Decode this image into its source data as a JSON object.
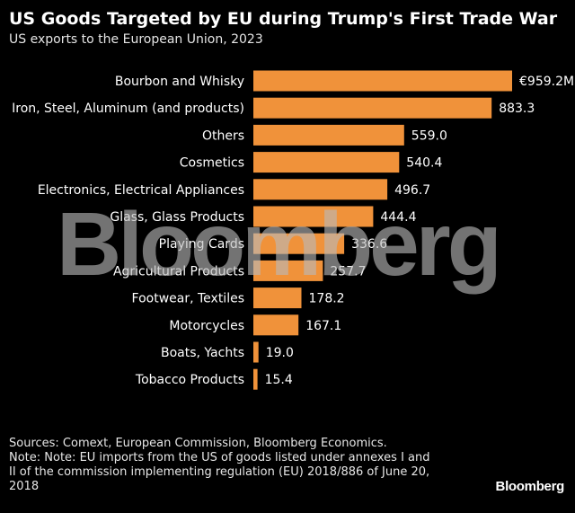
{
  "header": {
    "title": "US Goods Targeted by EU during Trump's First Trade War",
    "subtitle": "US exports to the European Union, 2023"
  },
  "chart_data": {
    "type": "bar",
    "orientation": "horizontal",
    "categories": [
      "Bourbon and Whisky",
      "Iron, Steel, Aluminum (and products)",
      "Others",
      "Cosmetics",
      "Electronics, Electrical Appliances",
      "Glass, Glass Products",
      "Playing Cards",
      "Agricultural Products",
      "Footwear, Textiles",
      "Motorcycles",
      "Boats, Yachts",
      "Tobacco Products"
    ],
    "values": [
      959.2,
      883.3,
      559.0,
      540.4,
      496.7,
      444.4,
      336.6,
      257.7,
      178.2,
      167.1,
      19.0,
      15.4
    ],
    "value_labels": [
      "€959.2M",
      "883.3",
      "559.0",
      "540.4",
      "496.7",
      "444.4",
      "336.6",
      "257.7",
      "178.2",
      "167.1",
      "19.0",
      "15.4"
    ],
    "bar_color": "#f0923a",
    "grid": false,
    "legend": "none"
  },
  "footer": {
    "sources": "Sources: Comext, European Commission, Bloomberg Economics.",
    "note": "Note: Note: EU imports from the US of goods listed under annexes I and II of the commission implementing regulation (EU) 2018/886 of June 20, 2018",
    "brand": "Bloomberg"
  },
  "watermark": "Bloomberg"
}
